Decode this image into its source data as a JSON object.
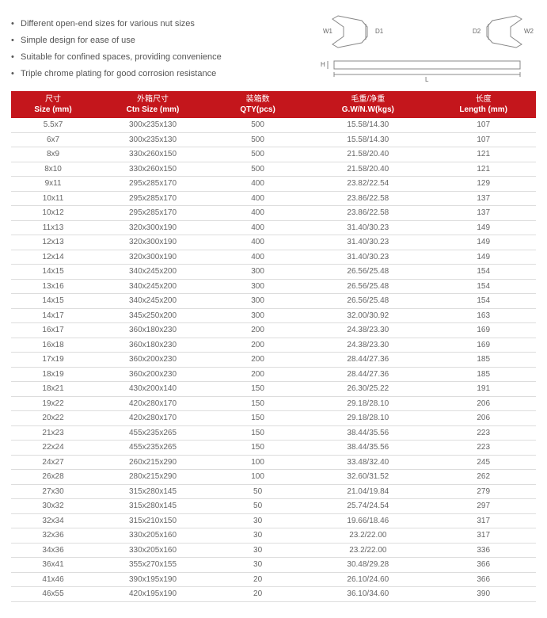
{
  "features": [
    "Different open-end sizes for various nut sizes",
    "Simple design for ease of use",
    "Suitable for confined spaces, providing convenience",
    "Triple chrome plating for good corrosion resistance"
  ],
  "diagram_labels": {
    "W1": "W1",
    "W2": "W2",
    "D1": "D1",
    "D2": "D2",
    "H": "H",
    "L": "L"
  },
  "table": {
    "header_bg": "#c4161c",
    "header_fg": "#ffffff",
    "columns": [
      {
        "cn": "尺寸",
        "en": "Size (mm)"
      },
      {
        "cn": "外箱尺寸",
        "en": "Ctn Size (mm)"
      },
      {
        "cn": "装箱数",
        "en": "QTY(pcs)"
      },
      {
        "cn": "毛重/净重",
        "en": "G.W/N.W(kgs)"
      },
      {
        "cn": "长度",
        "en": "Length (mm)"
      }
    ],
    "rows": [
      [
        "5.5x7",
        "300x235x130",
        "500",
        "15.58/14.30",
        "107"
      ],
      [
        "6x7",
        "300x235x130",
        "500",
        "15.58/14.30",
        "107"
      ],
      [
        "8x9",
        "330x260x150",
        "500",
        "21.58/20.40",
        "121"
      ],
      [
        "8x10",
        "330x260x150",
        "500",
        "21.58/20.40",
        "121"
      ],
      [
        "9x11",
        "295x285x170",
        "400",
        "23.82/22.54",
        "129"
      ],
      [
        "10x11",
        "295x285x170",
        "400",
        "23.86/22.58",
        "137"
      ],
      [
        "10x12",
        "295x285x170",
        "400",
        "23.86/22.58",
        "137"
      ],
      [
        "11x13",
        "320x300x190",
        "400",
        "31.40/30.23",
        "149"
      ],
      [
        "12x13",
        "320x300x190",
        "400",
        "31.40/30.23",
        "149"
      ],
      [
        "12x14",
        "320x300x190",
        "400",
        "31.40/30.23",
        "149"
      ],
      [
        "14x15",
        "340x245x200",
        "300",
        "26.56/25.48",
        "154"
      ],
      [
        "13x16",
        "340x245x200",
        "300",
        "26.56/25.48",
        "154"
      ],
      [
        "14x15",
        "340x245x200",
        "300",
        "26.56/25.48",
        "154"
      ],
      [
        "14x17",
        "345x250x200",
        "300",
        "32.00/30.92",
        "163"
      ],
      [
        "16x17",
        "360x180x230",
        "200",
        "24.38/23.30",
        "169"
      ],
      [
        "16x18",
        "360x180x230",
        "200",
        "24.38/23.30",
        "169"
      ],
      [
        "17x19",
        "360x200x230",
        "200",
        "28.44/27.36",
        "185"
      ],
      [
        "18x19",
        "360x200x230",
        "200",
        "28.44/27.36",
        "185"
      ],
      [
        "18x21",
        "430x200x140",
        "150",
        "26.30/25.22",
        "191"
      ],
      [
        "19x22",
        "420x280x170",
        "150",
        "29.18/28.10",
        "206"
      ],
      [
        "20x22",
        "420x280x170",
        "150",
        "29.18/28.10",
        "206"
      ],
      [
        "21x23",
        "455x235x265",
        "150",
        "38.44/35.56",
        "223"
      ],
      [
        "22x24",
        "455x235x265",
        "150",
        "38.44/35.56",
        "223"
      ],
      [
        "24x27",
        "260x215x290",
        "100",
        "33.48/32.40",
        "245"
      ],
      [
        "26x28",
        "280x215x290",
        "100",
        "32.60/31.52",
        "262"
      ],
      [
        "27x30",
        "315x280x145",
        "50",
        "21.04/19.84",
        "279"
      ],
      [
        "30x32",
        "315x280x145",
        "50",
        "25.74/24.54",
        "297"
      ],
      [
        "32x34",
        "315x210x150",
        "30",
        "19.66/18.46",
        "317"
      ],
      [
        "32x36",
        "330x205x160",
        "30",
        "23.2/22.00",
        "317"
      ],
      [
        "34x36",
        "330x205x160",
        "30",
        "23.2/22.00",
        "336"
      ],
      [
        "36x41",
        "355x270x155",
        "30",
        "30.48/29.28",
        "366"
      ],
      [
        "41x46",
        "390x195x190",
        "20",
        "26.10/24.60",
        "366"
      ],
      [
        "46x55",
        "420x195x190",
        "20",
        "36.10/34.60",
        "390"
      ]
    ]
  }
}
